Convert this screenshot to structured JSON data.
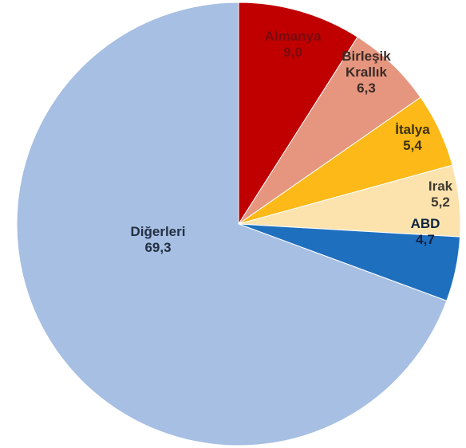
{
  "chart_data": {
    "type": "pie",
    "title": "",
    "slices": [
      {
        "label": [
          "Almanya"
        ],
        "value": 9.0,
        "value_label": "9,0",
        "color": "#C00000",
        "text_color": "#7a0a10"
      },
      {
        "label": [
          "Birleşik",
          "Krallık"
        ],
        "value": 6.3,
        "value_label": "6,3",
        "color": "#E6967F",
        "text_color": "#3a2a25"
      },
      {
        "label": [
          "İtalya"
        ],
        "value": 5.4,
        "value_label": "5,4",
        "color": "#FCB918",
        "text_color": "#3d3210"
      },
      {
        "label": [
          "Irak"
        ],
        "value": 5.2,
        "value_label": "5,2",
        "color": "#FCE3AE",
        "text_color": "#3d3a30"
      },
      {
        "label": [
          "ABD"
        ],
        "value": 4.7,
        "value_label": "4,7",
        "color": "#1F6FBF",
        "text_color": "#0d2240"
      },
      {
        "label": [
          "Diğerleri"
        ],
        "value": 69.3,
        "value_label": "69,3",
        "color": "#A6BFE3",
        "text_color": "#243042"
      }
    ],
    "start_angle": "12 o'clock",
    "direction": "clockwise",
    "legend": "none"
  }
}
